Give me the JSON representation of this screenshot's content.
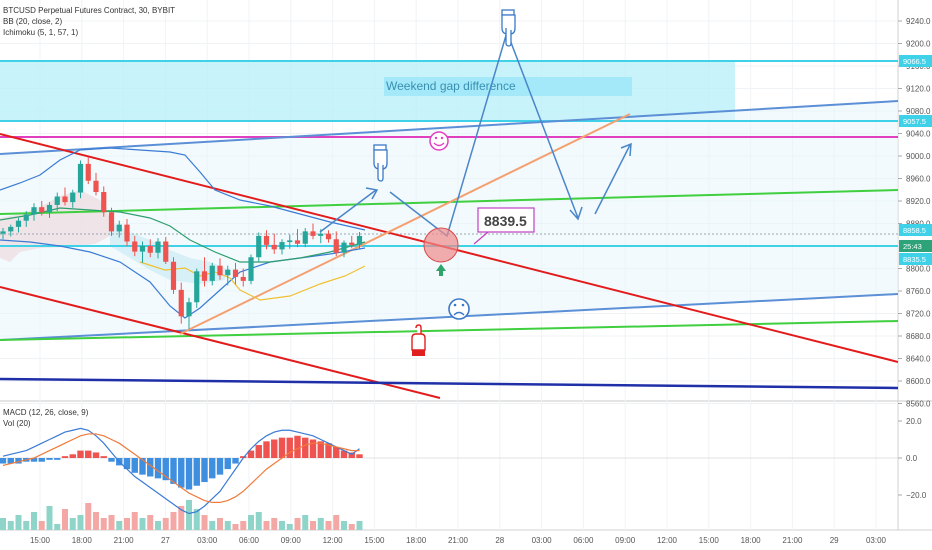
{
  "header": {
    "symbol": "BTCUSD Perpetual Futures Contract, 30, BYBIT",
    "bb": "BB (20, close, 2)",
    "ichimoku": "Ichimoku (5, 1, 57, 1)"
  },
  "macd_pane": {
    "macd_label": "MACD (12, 26, close, 9)",
    "vol_label": "Vol (20)"
  },
  "annotations": {
    "weekend_gap": "Weekend gap difference",
    "callout": "8839.5"
  },
  "colors": {
    "up": "#26a69a",
    "down": "#ef5350",
    "cyan": "#3fd1e8",
    "gap_fill": "#b5effa",
    "trend_red": "#e31b1b",
    "trend_blue": "#5b8fd6",
    "green": "#3fcf3f",
    "magenta": "#e040c0",
    "navy": "#1e2fa8",
    "orange": "#f4a070",
    "arrow": "#4a86c8"
  },
  "chart_data": {
    "type": "candlestick",
    "price_ticks": [
      "9240.0",
      "9200.0",
      "9160.0",
      "9120.0",
      "9080.0",
      "9040.0",
      "9000.0",
      "8960.0",
      "8920.0",
      "8880.0",
      "8800.0",
      "8760.0",
      "8720.0",
      "8680.0",
      "8640.0",
      "8600.0",
      "8560.0"
    ],
    "macd_ticks": [
      "20.0",
      "0.0",
      "−20.0"
    ],
    "time_ticks": [
      "15:00",
      "18:00",
      "21:00",
      "27",
      "03:00",
      "06:00",
      "09:00",
      "12:00",
      "15:00",
      "18:00",
      "21:00",
      "28",
      "03:00",
      "06:00",
      "09:00",
      "12:00",
      "15:00",
      "18:00",
      "21:00",
      "29",
      "03:00"
    ],
    "price_tags": [
      {
        "label": "9066.5",
        "value": 9066.5
      },
      {
        "label": "9057.5",
        "value": 9057.5
      },
      {
        "label": "8858.5",
        "value": 8858.5
      },
      {
        "label": "25:43",
        "value": 8849.5
      },
      {
        "label": "8835.5",
        "value": 8835.5
      }
    ],
    "candles": [
      [
        8862,
        8872,
        8852,
        8866
      ],
      [
        8866,
        8878,
        8857,
        8874
      ],
      [
        8874,
        8890,
        8864,
        8885
      ],
      [
        8885,
        8902,
        8874,
        8896
      ],
      [
        8896,
        8916,
        8885,
        8909
      ],
      [
        8909,
        8920,
        8894,
        8900
      ],
      [
        8900,
        8918,
        8890,
        8913
      ],
      [
        8913,
        8935,
        8902,
        8928
      ],
      [
        8928,
        8944,
        8912,
        8918
      ],
      [
        8918,
        8940,
        8908,
        8935
      ],
      [
        8935,
        8992,
        8925,
        8986
      ],
      [
        8986,
        8998,
        8950,
        8956
      ],
      [
        8956,
        8970,
        8930,
        8936
      ],
      [
        8936,
        8946,
        8892,
        8900
      ],
      [
        8900,
        8908,
        8858,
        8866
      ],
      [
        8866,
        8885,
        8855,
        8878
      ],
      [
        8878,
        8888,
        8840,
        8848
      ],
      [
        8848,
        8858,
        8822,
        8830
      ],
      [
        8830,
        8848,
        8810,
        8840
      ],
      [
        8840,
        8852,
        8820,
        8828
      ],
      [
        8828,
        8854,
        8818,
        8848
      ],
      [
        8848,
        8856,
        8808,
        8812
      ],
      [
        8812,
        8820,
        8755,
        8762
      ],
      [
        8762,
        8775,
        8702,
        8715
      ],
      [
        8715,
        8748,
        8692,
        8740
      ],
      [
        8740,
        8800,
        8730,
        8795
      ],
      [
        8795,
        8820,
        8768,
        8778
      ],
      [
        8778,
        8810,
        8770,
        8805
      ],
      [
        8805,
        8818,
        8780,
        8788
      ],
      [
        8788,
        8805,
        8770,
        8798
      ],
      [
        8798,
        8810,
        8772,
        8785
      ],
      [
        8785,
        8800,
        8768,
        8778
      ],
      [
        8778,
        8825,
        8772,
        8820
      ],
      [
        8820,
        8864,
        8812,
        8858
      ],
      [
        8858,
        8868,
        8834,
        8842
      ],
      [
        8842,
        8862,
        8826,
        8834
      ],
      [
        8834,
        8852,
        8825,
        8847
      ],
      [
        8847,
        8860,
        8835,
        8850
      ],
      [
        8850,
        8870,
        8838,
        8844
      ],
      [
        8844,
        8872,
        8838,
        8866
      ],
      [
        8866,
        8880,
        8852,
        8858
      ],
      [
        8858,
        8870,
        8845,
        8862
      ],
      [
        8862,
        8868,
        8846,
        8852
      ],
      [
        8852,
        8866,
        8822,
        8828
      ],
      [
        8828,
        8850,
        8820,
        8846
      ],
      [
        8846,
        8858,
        8836,
        8842
      ],
      [
        8842,
        8865,
        8835,
        8858
      ]
    ],
    "macd_hist": [
      -3,
      -3,
      -3,
      -2,
      -2,
      -2,
      -1,
      -1,
      1,
      2,
      4,
      4,
      3,
      1,
      -2,
      -4,
      -6,
      -8,
      -9,
      -10,
      -11,
      -12,
      -14,
      -16,
      -17,
      -15,
      -13,
      -11,
      -9,
      -6,
      -3,
      1,
      4,
      7,
      9,
      10,
      11,
      11,
      12,
      11,
      10,
      9,
      8,
      6,
      4,
      3,
      2
    ],
    "macd_line": [
      1,
      2,
      3,
      4,
      6,
      8,
      10,
      12,
      14,
      15,
      16,
      15,
      12,
      8,
      3,
      -2,
      -6,
      -10,
      -13,
      -16,
      -19,
      -22,
      -25,
      -28,
      -30,
      -29,
      -26,
      -22,
      -18,
      -12,
      -6,
      0,
      5,
      9,
      12,
      14,
      15,
      15,
      14,
      13,
      12,
      10,
      8,
      6,
      4,
      2,
      5
    ],
    "signal_line": [
      -4,
      -3,
      -2,
      -1,
      0,
      2,
      4,
      6,
      8,
      10,
      12,
      13,
      13,
      12,
      10,
      8,
      5,
      2,
      -1,
      -4,
      -7,
      -10,
      -13,
      -16,
      -19,
      -21,
      -23,
      -24,
      -24,
      -23,
      -21,
      -18,
      -14,
      -10,
      -6,
      -3,
      0,
      3,
      5,
      7,
      8,
      8,
      7,
      6,
      5,
      4,
      4
    ],
    "volume": [
      4,
      3,
      5,
      3,
      6,
      3,
      8,
      2,
      7,
      4,
      5,
      9,
      6,
      4,
      5,
      3,
      4,
      6,
      4,
      5,
      3,
      4,
      6,
      8,
      10,
      7,
      5,
      3,
      4,
      3,
      2,
      3,
      5,
      6,
      3,
      4,
      3,
      2,
      4,
      5,
      3,
      4,
      3,
      5,
      3,
      2,
      3
    ]
  }
}
